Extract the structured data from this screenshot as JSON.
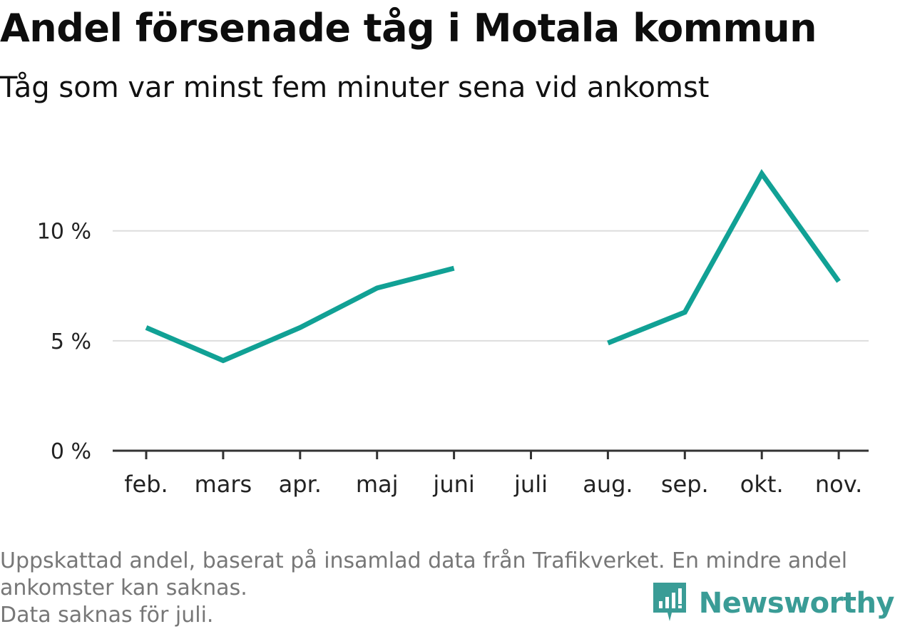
{
  "title": "Andel försenade tåg i Motala kommun",
  "subtitle": "Tåg som var minst fem minuter sena vid ankomst",
  "footnote": {
    "line1": "Uppskattad andel, baserat på insamlad data från Trafikverket. En mindre andel",
    "line2": "ankomster kan saknas.",
    "line3": "Data saknas för juli."
  },
  "brand": {
    "name": "Newsworthy",
    "color": "#3a9c96",
    "icon": "newsworthy-logo-icon"
  },
  "chart_data": {
    "type": "line",
    "categories": [
      "feb.",
      "mars",
      "apr.",
      "maj",
      "juni",
      "juli",
      "aug.",
      "sep.",
      "okt.",
      "nov."
    ],
    "series": [
      {
        "values": [
          5.6,
          4.1,
          5.6,
          7.4,
          8.3,
          null,
          4.9,
          6.3,
          12.6,
          7.7
        ],
        "color": "#11a195"
      }
    ],
    "yticks": [
      0,
      5,
      10
    ],
    "ytick_labels": [
      "0 %",
      "5 %",
      "10 %"
    ],
    "ylim": [
      0,
      13.3
    ],
    "grid": true,
    "xlabel": "",
    "ylabel": ""
  }
}
